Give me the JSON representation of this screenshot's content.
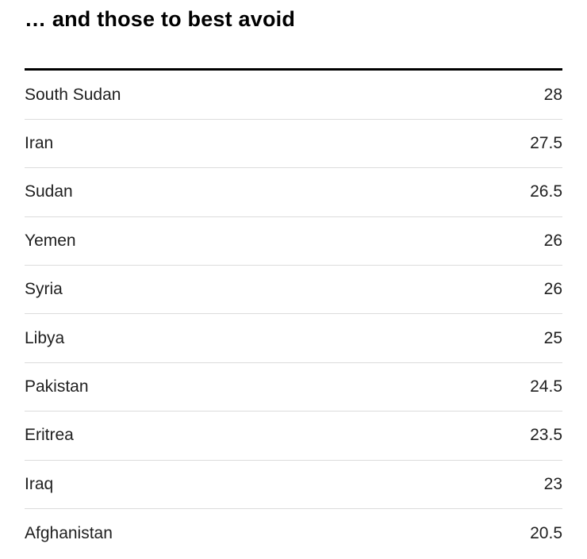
{
  "title": "… and those to best avoid",
  "colors": {
    "background": "#ffffff",
    "title_text": "#000000",
    "row_text": "#1f1f1f",
    "top_rule": "#000000",
    "divider": "#dcdcdc"
  },
  "table": {
    "rows": [
      {
        "label": "South Sudan",
        "value": "28"
      },
      {
        "label": "Iran",
        "value": "27.5"
      },
      {
        "label": "Sudan",
        "value": "26.5"
      },
      {
        "label": "Yemen",
        "value": "26"
      },
      {
        "label": "Syria",
        "value": "26"
      },
      {
        "label": "Libya",
        "value": "25"
      },
      {
        "label": "Pakistan",
        "value": "24.5"
      },
      {
        "label": "Eritrea",
        "value": "23.5"
      },
      {
        "label": "Iraq",
        "value": "23"
      },
      {
        "label": "Afghanistan",
        "value": "20.5"
      }
    ]
  },
  "chart_data": {
    "type": "table",
    "title": "… and those to best avoid",
    "categories": [
      "South Sudan",
      "Iran",
      "Sudan",
      "Yemen",
      "Syria",
      "Libya",
      "Pakistan",
      "Eritrea",
      "Iraq",
      "Afghanistan"
    ],
    "values": [
      28,
      27.5,
      26.5,
      26,
      26,
      25,
      24.5,
      23.5,
      23,
      20.5
    ],
    "xlabel": "",
    "ylabel": "",
    "legend": "none",
    "grid": "row-dividers-only",
    "value_alignment": "right",
    "sort_order": "descending"
  }
}
